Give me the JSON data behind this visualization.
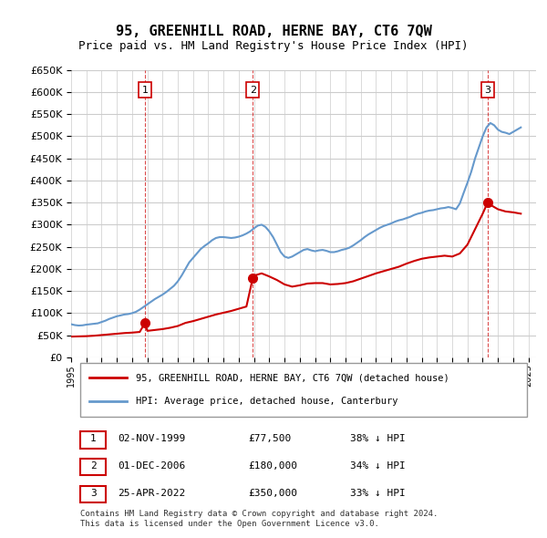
{
  "title": "95, GREENHILL ROAD, HERNE BAY, CT6 7QW",
  "subtitle": "Price paid vs. HM Land Registry's House Price Index (HPI)",
  "ylabel_ticks": [
    "£0",
    "£50K",
    "£100K",
    "£150K",
    "£200K",
    "£250K",
    "£300K",
    "£350K",
    "£400K",
    "£450K",
    "£500K",
    "£550K",
    "£600K",
    "£650K"
  ],
  "ylim": [
    0,
    650000
  ],
  "xlim_start": 1995.0,
  "xlim_end": 2025.5,
  "sale_dates": [
    1999.84,
    2006.92,
    2022.32
  ],
  "sale_prices": [
    77500,
    180000,
    350000
  ],
  "sale_labels": [
    "1",
    "2",
    "3"
  ],
  "red_line_color": "#cc0000",
  "blue_line_color": "#6699cc",
  "marker_color": "#cc0000",
  "legend_label_red": "95, GREENHILL ROAD, HERNE BAY, CT6 7QW (detached house)",
  "legend_label_blue": "HPI: Average price, detached house, Canterbury",
  "table_data": [
    [
      "1",
      "02-NOV-1999",
      "£77,500",
      "38% ↓ HPI"
    ],
    [
      "2",
      "01-DEC-2006",
      "£180,000",
      "34% ↓ HPI"
    ],
    [
      "3",
      "25-APR-2022",
      "£350,000",
      "33% ↓ HPI"
    ]
  ],
  "footnote1": "Contains HM Land Registry data © Crown copyright and database right 2024.",
  "footnote2": "This data is licensed under the Open Government Licence v3.0.",
  "hpi_data": {
    "years": [
      1995.0,
      1995.25,
      1995.5,
      1995.75,
      1996.0,
      1996.25,
      1996.5,
      1996.75,
      1997.0,
      1997.25,
      1997.5,
      1997.75,
      1998.0,
      1998.25,
      1998.5,
      1998.75,
      1999.0,
      1999.25,
      1999.5,
      1999.75,
      2000.0,
      2000.25,
      2000.5,
      2000.75,
      2001.0,
      2001.25,
      2001.5,
      2001.75,
      2002.0,
      2002.25,
      2002.5,
      2002.75,
      2003.0,
      2003.25,
      2003.5,
      2003.75,
      2004.0,
      2004.25,
      2004.5,
      2004.75,
      2005.0,
      2005.25,
      2005.5,
      2005.75,
      2006.0,
      2006.25,
      2006.5,
      2006.75,
      2007.0,
      2007.25,
      2007.5,
      2007.75,
      2008.0,
      2008.25,
      2008.5,
      2008.75,
      2009.0,
      2009.25,
      2009.5,
      2009.75,
      2010.0,
      2010.25,
      2010.5,
      2010.75,
      2011.0,
      2011.25,
      2011.5,
      2011.75,
      2012.0,
      2012.25,
      2012.5,
      2012.75,
      2013.0,
      2013.25,
      2013.5,
      2013.75,
      2014.0,
      2014.25,
      2014.5,
      2014.75,
      2015.0,
      2015.25,
      2015.5,
      2015.75,
      2016.0,
      2016.25,
      2016.5,
      2016.75,
      2017.0,
      2017.25,
      2017.5,
      2017.75,
      2018.0,
      2018.25,
      2018.5,
      2018.75,
      2019.0,
      2019.25,
      2019.5,
      2019.75,
      2020.0,
      2020.25,
      2020.5,
      2020.75,
      2021.0,
      2021.25,
      2021.5,
      2021.75,
      2022.0,
      2022.25,
      2022.5,
      2022.75,
      2023.0,
      2023.25,
      2023.5,
      2023.75,
      2024.0,
      2024.25,
      2024.5
    ],
    "values": [
      75000,
      73000,
      72000,
      72500,
      74000,
      75000,
      76000,
      77000,
      80000,
      83000,
      87000,
      90000,
      93000,
      95000,
      97000,
      98000,
      100000,
      103000,
      108000,
      114000,
      120000,
      126000,
      132000,
      137000,
      142000,
      148000,
      155000,
      162000,
      172000,
      185000,
      200000,
      215000,
      225000,
      235000,
      245000,
      252000,
      258000,
      265000,
      270000,
      272000,
      272000,
      271000,
      270000,
      271000,
      273000,
      276000,
      280000,
      285000,
      292000,
      298000,
      300000,
      295000,
      285000,
      272000,
      255000,
      238000,
      228000,
      225000,
      228000,
      233000,
      238000,
      243000,
      245000,
      242000,
      240000,
      242000,
      243000,
      241000,
      238000,
      238000,
      240000,
      243000,
      245000,
      248000,
      253000,
      259000,
      265000,
      272000,
      278000,
      283000,
      288000,
      293000,
      297000,
      300000,
      303000,
      307000,
      310000,
      312000,
      315000,
      318000,
      322000,
      325000,
      327000,
      330000,
      332000,
      333000,
      335000,
      337000,
      338000,
      340000,
      338000,
      335000,
      348000,
      372000,
      395000,
      420000,
      450000,
      475000,
      500000,
      520000,
      530000,
      525000,
      515000,
      510000,
      508000,
      505000,
      510000,
      515000,
      520000
    ]
  },
  "property_data": {
    "years": [
      1995.0,
      1995.5,
      1996.0,
      1996.5,
      1997.0,
      1997.5,
      1998.0,
      1998.5,
      1999.0,
      1999.5,
      1999.84,
      2000.0,
      2000.5,
      2001.0,
      2001.5,
      2002.0,
      2002.5,
      2003.0,
      2003.5,
      2004.0,
      2004.5,
      2005.0,
      2005.5,
      2006.0,
      2006.5,
      2006.92,
      2007.0,
      2007.5,
      2008.0,
      2008.5,
      2009.0,
      2009.5,
      2010.0,
      2010.5,
      2011.0,
      2011.5,
      2012.0,
      2012.5,
      2013.0,
      2013.5,
      2014.0,
      2014.5,
      2015.0,
      2015.5,
      2016.0,
      2016.5,
      2017.0,
      2017.5,
      2018.0,
      2018.5,
      2019.0,
      2019.5,
      2020.0,
      2020.5,
      2021.0,
      2021.5,
      2022.0,
      2022.32,
      2022.5,
      2023.0,
      2023.5,
      2024.0,
      2024.5
    ],
    "values": [
      47000,
      47500,
      48000,
      49000,
      50500,
      52000,
      53500,
      55000,
      56000,
      57500,
      77500,
      60000,
      62000,
      64000,
      67000,
      71000,
      78000,
      82000,
      87000,
      92000,
      97000,
      101000,
      105000,
      110000,
      115000,
      180000,
      185000,
      190000,
      183000,
      175000,
      165000,
      160000,
      163000,
      167000,
      168000,
      168000,
      165000,
      166000,
      168000,
      172000,
      178000,
      184000,
      190000,
      195000,
      200000,
      205000,
      212000,
      218000,
      223000,
      226000,
      228000,
      230000,
      228000,
      235000,
      255000,
      290000,
      325000,
      350000,
      345000,
      335000,
      330000,
      328000,
      325000
    ]
  },
  "vline_dates": [
    1999.84,
    2006.92,
    2022.32
  ],
  "vline_color": "#cc0000",
  "grid_color": "#cccccc",
  "background_color": "#ffffff"
}
